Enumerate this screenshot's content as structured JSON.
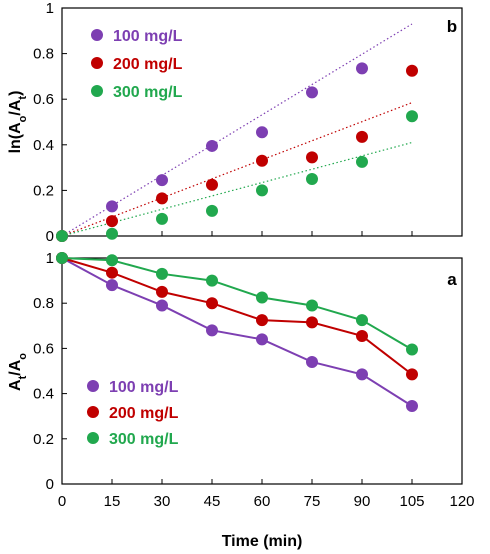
{
  "chart_data": [
    {
      "id": "b",
      "type": "scatter",
      "panel_label": "b",
      "ylabel": {
        "main": "ln(A",
        "sub1": "o",
        "mid": "/A",
        "sub2": "t",
        "end": ")"
      },
      "ylim": [
        0,
        1
      ],
      "yticks": [
        "0",
        "0.2",
        "0.4",
        "0.6",
        "0.8",
        "1"
      ],
      "ytick_values": [
        0,
        0.2,
        0.4,
        0.6,
        0.8,
        1.0
      ],
      "xlim": [
        0,
        120
      ],
      "legend_position": "top-left",
      "series": [
        {
          "name": "100 mg/L",
          "color": "#7d3fb2",
          "x": [
            0,
            15,
            30,
            45,
            60,
            75,
            90
          ],
          "y": [
            0.0,
            0.13,
            0.245,
            0.395,
            0.455,
            0.63,
            0.735
          ],
          "fit_line": {
            "x": [
              0,
              105
            ],
            "y": [
              0,
              0.93
            ]
          }
        },
        {
          "name": "200 mg/L",
          "color": "#c00000",
          "x": [
            0,
            15,
            30,
            45,
            60,
            75,
            90,
            105
          ],
          "y": [
            0.0,
            0.065,
            0.165,
            0.225,
            0.33,
            0.345,
            0.435,
            0.725
          ],
          "fit_line": {
            "x": [
              0,
              105
            ],
            "y": [
              0,
              0.585
            ]
          }
        },
        {
          "name": "300 mg/L",
          "color": "#21a84e",
          "x": [
            0,
            15,
            30,
            45,
            60,
            75,
            90,
            105
          ],
          "y": [
            0.0,
            0.01,
            0.075,
            0.11,
            0.2,
            0.25,
            0.325,
            0.525
          ],
          "fit_line": {
            "x": [
              0,
              105
            ],
            "y": [
              0,
              0.41
            ]
          }
        }
      ]
    },
    {
      "id": "a",
      "type": "line",
      "panel_label": "a",
      "ylabel": {
        "main": "A",
        "sub1": "t",
        "mid": "/A",
        "sub2": "o",
        "end": ""
      },
      "ylim": [
        0,
        1
      ],
      "yticks": [
        "0",
        "0.2",
        "0.4",
        "0.6",
        "0.8",
        "1"
      ],
      "ytick_values": [
        0,
        0.2,
        0.4,
        0.6,
        0.8,
        1.0
      ],
      "xlim": [
        0,
        120
      ],
      "xlabel": "Time (min)",
      "xticks": [
        "0",
        "15",
        "30",
        "45",
        "60",
        "75",
        "90",
        "105",
        "120"
      ],
      "xtick_values": [
        0,
        15,
        30,
        45,
        60,
        75,
        90,
        105,
        120
      ],
      "legend_position": "bottom-left",
      "series": [
        {
          "name": "100 mg/L",
          "color": "#7d3fb2",
          "x": [
            0,
            15,
            30,
            45,
            60,
            75,
            90,
            105
          ],
          "y": [
            1.0,
            0.88,
            0.79,
            0.68,
            0.64,
            0.54,
            0.485,
            0.345
          ]
        },
        {
          "name": "200 mg/L",
          "color": "#c00000",
          "x": [
            0,
            15,
            30,
            45,
            60,
            75,
            90,
            105
          ],
          "y": [
            1.0,
            0.935,
            0.85,
            0.8,
            0.725,
            0.715,
            0.655,
            0.485
          ]
        },
        {
          "name": "300 mg/L",
          "color": "#21a84e",
          "x": [
            0,
            15,
            30,
            45,
            60,
            75,
            90,
            105
          ],
          "y": [
            1.0,
            0.99,
            0.93,
            0.9,
            0.825,
            0.79,
            0.725,
            0.595
          ]
        }
      ]
    }
  ]
}
